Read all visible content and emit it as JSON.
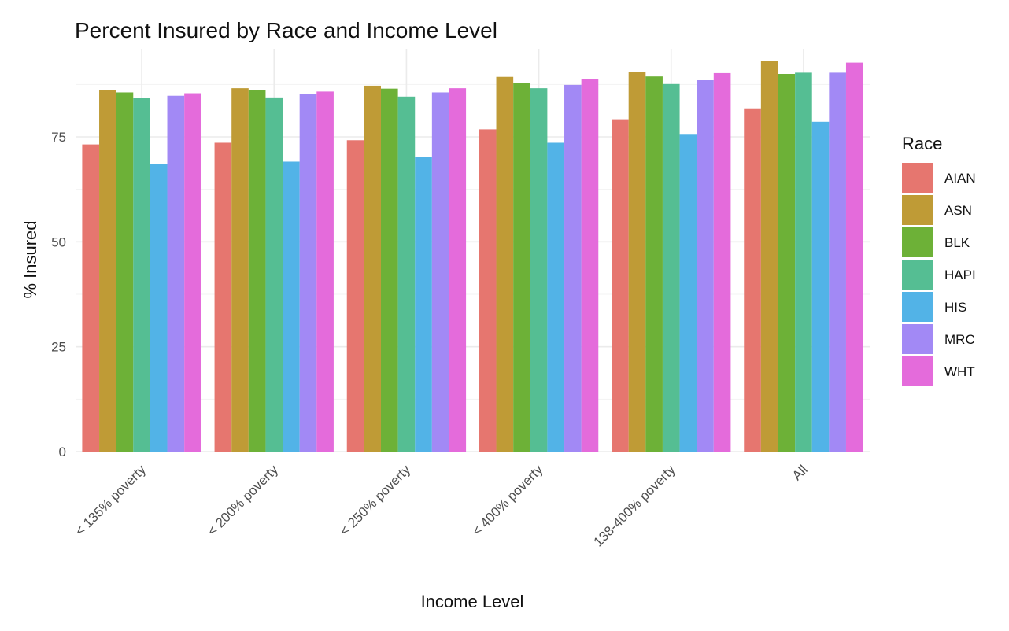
{
  "chart_data": {
    "type": "bar",
    "title": "Percent Insured by Race and Income Level",
    "xlabel": "Income Level",
    "ylabel": "% Insured",
    "ylim": [
      0,
      96
    ],
    "yticks": [
      0,
      25,
      50,
      75
    ],
    "grid": true,
    "legend_title": "Race",
    "legend_position": "right",
    "categories": [
      "< 135% poverty",
      "< 200% poverty",
      "< 250% poverty",
      "< 400% poverty",
      "138-400% poverty",
      "All"
    ],
    "series": [
      {
        "name": "AIAN",
        "color": "#E6766F",
        "values": [
          73.2,
          73.6,
          74.2,
          76.8,
          79.2,
          81.8
        ]
      },
      {
        "name": "ASN",
        "color": "#BF9B36",
        "values": [
          86.1,
          86.6,
          87.2,
          89.3,
          90.4,
          93.1
        ]
      },
      {
        "name": "BLK",
        "color": "#6DB137",
        "values": [
          85.6,
          86.1,
          86.5,
          87.9,
          89.4,
          90.0
        ]
      },
      {
        "name": "HAPI",
        "color": "#55BE93",
        "values": [
          84.3,
          84.4,
          84.6,
          86.6,
          87.6,
          90.3
        ]
      },
      {
        "name": "HIS",
        "color": "#52B3E7",
        "values": [
          68.5,
          69.1,
          70.3,
          73.6,
          75.7,
          78.6
        ]
      },
      {
        "name": "MRC",
        "color": "#A289F5",
        "values": [
          84.8,
          85.2,
          85.6,
          87.4,
          88.5,
          90.3
        ]
      },
      {
        "name": "WHT",
        "color": "#E46BDB",
        "values": [
          85.4,
          85.8,
          86.6,
          88.8,
          90.2,
          92.7
        ]
      }
    ]
  }
}
